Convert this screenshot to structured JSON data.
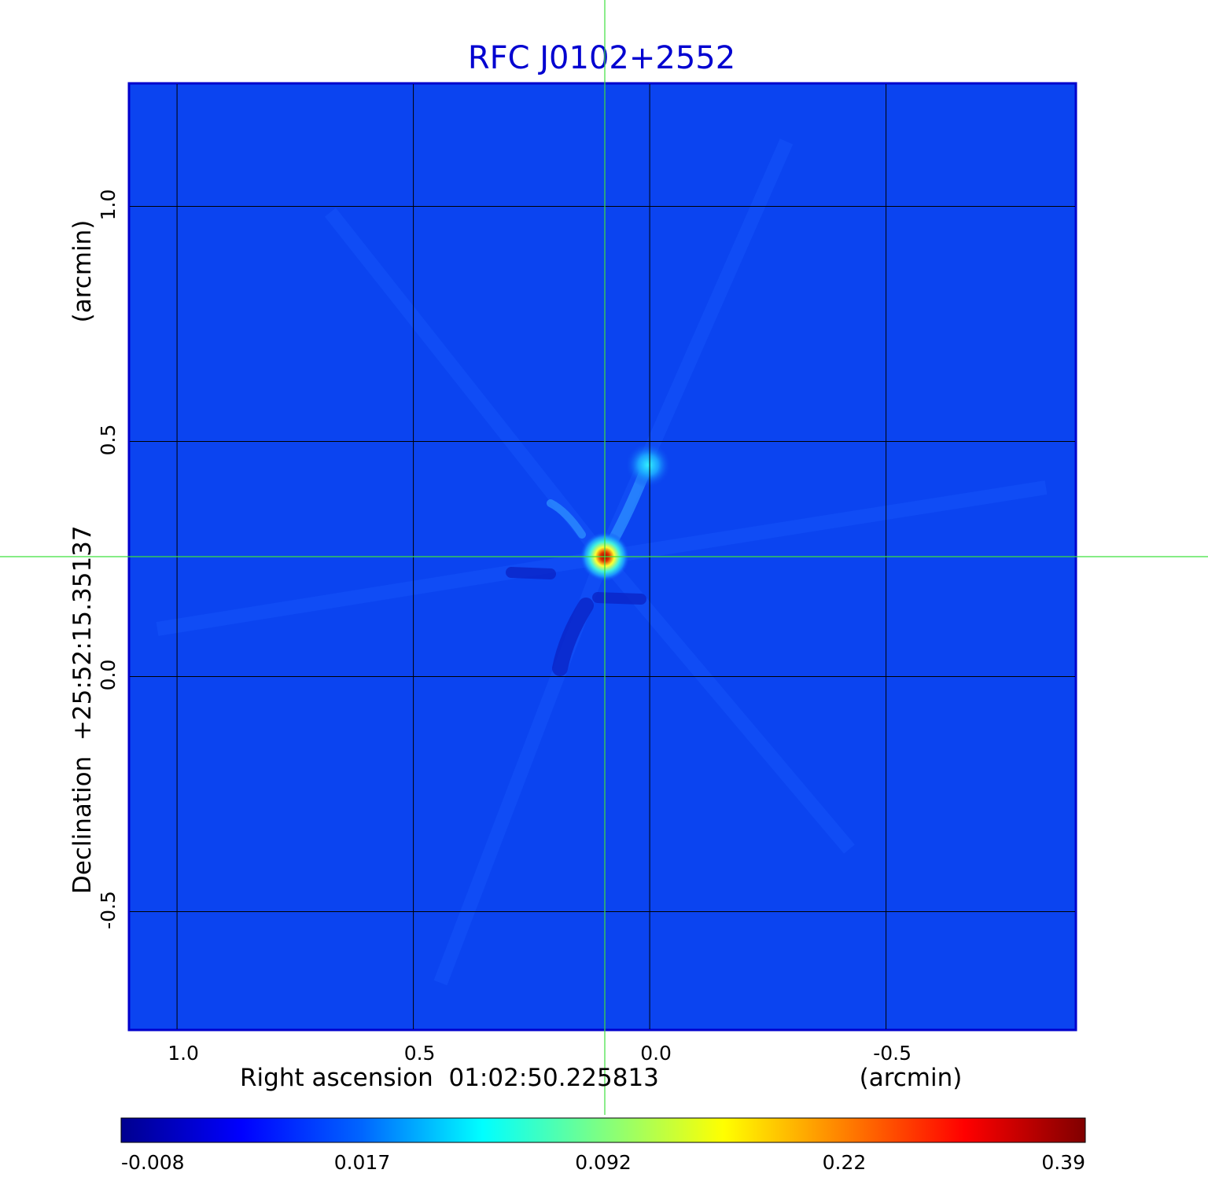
{
  "title": "RFC J0102+2552",
  "chart_data": {
    "type": "heatmap",
    "title": "RFC J0102+2552",
    "xlabel": "Right ascension  01:02:50.225813",
    "xunit": "(arcmin)",
    "ylabel": "Declination  +25:52:15.35137",
    "yunit": "(arcmin)",
    "x_ticks": [
      "1.0",
      "0.5",
      "0.0",
      "-0.5"
    ],
    "x_tick_values": [
      1.0,
      0.5,
      0.0,
      -0.5
    ],
    "y_ticks": [
      "1.0",
      "0.5",
      "0.0",
      "-0.5"
    ],
    "y_tick_values": [
      1.0,
      0.5,
      0.0,
      -0.5
    ],
    "xlim": [
      1.1,
      -0.9
    ],
    "ylim": [
      -0.75,
      1.26
    ],
    "grid": true,
    "crosshair": {
      "x": 0.095,
      "y": 0.255,
      "color": "#3ee03e"
    },
    "sources": [
      {
        "x": 0.095,
        "y": 0.255,
        "peak": 0.39,
        "sigma": 0.022
      },
      {
        "x": 0.003,
        "y": 0.45,
        "peak": 0.04,
        "sigma": 0.02
      }
    ],
    "colorbar": {
      "tick_labels": [
        "-0.008",
        "0.017",
        "0.092",
        "0.22",
        "0.39"
      ],
      "colors": [
        "#00008f",
        "#0000ff",
        "#0066ff",
        "#00ffff",
        "#80ff80",
        "#ffff00",
        "#ff8000",
        "#ff0000",
        "#800000"
      ]
    },
    "background_color": "#0b44f0",
    "title_color": "#0000d0",
    "frame_color": "#0000cc"
  }
}
